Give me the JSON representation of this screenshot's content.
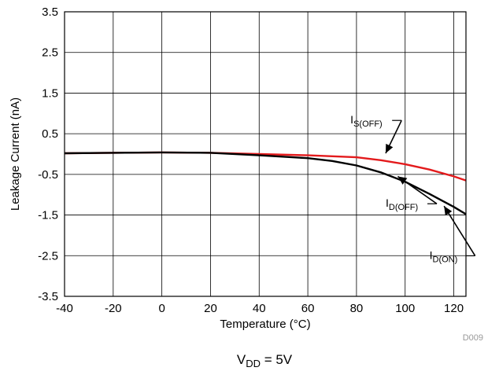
{
  "chart_data": {
    "type": "line",
    "xlabel": "Temperature (°C)",
    "ylabel": "Leakage Current (nA)",
    "xlim": [
      -40,
      125
    ],
    "ylim": [
      -3.5,
      3.5
    ],
    "x_ticks": [
      "-40",
      "-20",
      "0",
      "20",
      "40",
      "60",
      "80",
      "100",
      "120"
    ],
    "x_tick_values": [
      -40,
      -20,
      0,
      20,
      40,
      60,
      80,
      100,
      120
    ],
    "y_ticks": [
      "3.5",
      "2.5",
      "1.5",
      "0.5",
      "-0.5",
      "-1.5",
      "-2.5",
      "-3.5"
    ],
    "y_tick_values": [
      3.5,
      2.5,
      1.5,
      0.5,
      -0.5,
      -1.5,
      -2.5,
      -3.5
    ],
    "grid": true,
    "series": [
      {
        "color": "#e31a1c",
        "x": [
          -40,
          -20,
          0,
          20,
          40,
          60,
          80,
          90,
          100,
          110,
          120,
          125
        ],
        "y": [
          0.02,
          0.03,
          0.04,
          0.03,
          0.0,
          -0.03,
          -0.08,
          -0.15,
          -0.25,
          -0.38,
          -0.55,
          -0.65
        ]
      },
      {
        "color": "#000000",
        "x": [
          -40,
          -20,
          0,
          20,
          40,
          60,
          70,
          80,
          90,
          100,
          110,
          120,
          125
        ],
        "y": [
          0.02,
          0.03,
          0.04,
          0.03,
          -0.03,
          -0.1,
          -0.17,
          -0.28,
          -0.45,
          -0.68,
          -0.98,
          -1.3,
          -1.48
        ]
      }
    ],
    "annotations": [
      {
        "main": "I",
        "sub": "S(OFF)",
        "x": 77.5,
        "y": 0.75,
        "arrow_to": [
          92,
          0.02
        ]
      },
      {
        "main": "I",
        "sub": "D(OFF)",
        "x": 92,
        "y": -1.3,
        "arrow_to": [
          97,
          -0.55
        ]
      },
      {
        "main": "I",
        "sub": "D(ON)",
        "x": 110,
        "y": -2.58,
        "arrow_to": [
          116,
          -1.28
        ]
      }
    ],
    "figure_id": "D009",
    "caption": {
      "main": "V",
      "sub": "DD",
      "rest": " = 5V"
    }
  }
}
